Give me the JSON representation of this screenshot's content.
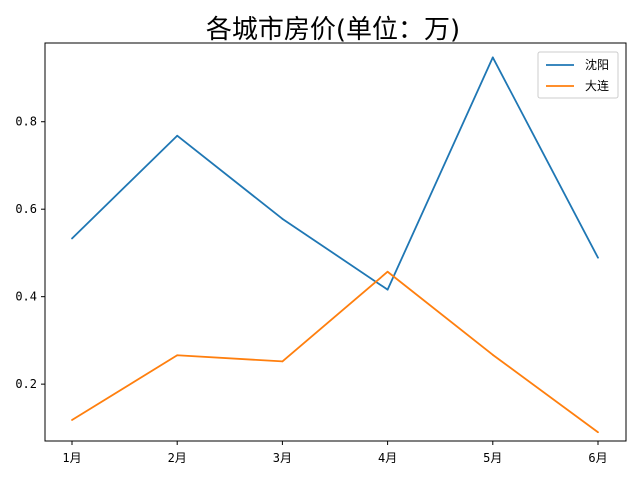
{
  "chart_data": {
    "type": "line",
    "title": "各城市房价(单位：万)",
    "xlabel": "",
    "ylabel": "",
    "categories": [
      "1月",
      "2月",
      "3月",
      "4月",
      "5月",
      "6月"
    ],
    "ylim": [
      0.07,
      0.98
    ],
    "yticks": [
      0.2,
      0.4,
      0.6,
      0.8
    ],
    "ytick_labels": [
      "0.2",
      "0.4",
      "0.6",
      "0.8"
    ],
    "grid": false,
    "legend_position": "top-right",
    "series": [
      {
        "name": "沈阳",
        "color": "#1f77b4",
        "values": [
          0.533,
          0.768,
          0.578,
          0.416,
          0.947,
          0.489
        ]
      },
      {
        "name": "大连",
        "color": "#ff7f0e",
        "values": [
          0.118,
          0.266,
          0.252,
          0.457,
          0.267,
          0.09
        ]
      }
    ]
  }
}
